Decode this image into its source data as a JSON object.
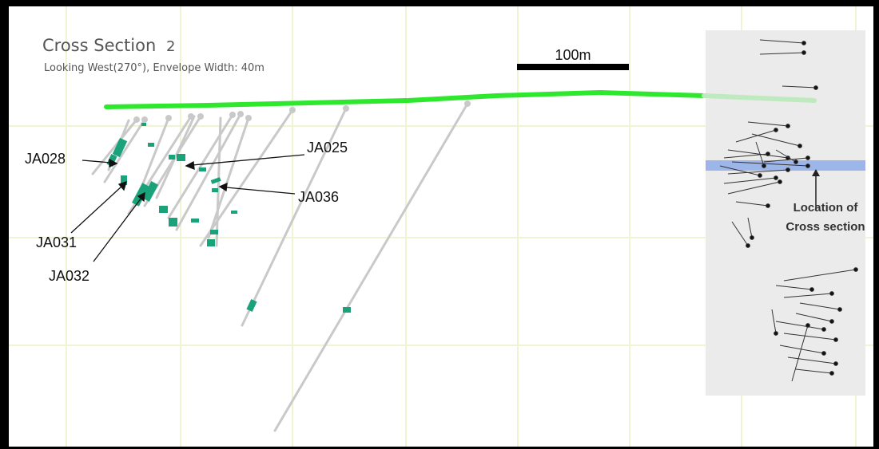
{
  "title": {
    "main": "Cross Section",
    "number": "2",
    "subtitle": "Looking West(270°), Envelope Width: 40m"
  },
  "scale_bar": {
    "label": "100m"
  },
  "drillholes": {
    "labels": [
      "JA028",
      "JA025",
      "JA036",
      "JA031",
      "JA032"
    ]
  },
  "inset": {
    "label_line1": "Location of",
    "label_line2": "Cross section"
  },
  "colors": {
    "surface": "#2ee82e",
    "surface_faded": "#bfe9bf",
    "drillhole": "#c8c8c8",
    "intercept": "#1aa37a",
    "grid": "#f3f6d9",
    "inset_bg": "#ebebeb",
    "section_band": "#9db6ea"
  }
}
